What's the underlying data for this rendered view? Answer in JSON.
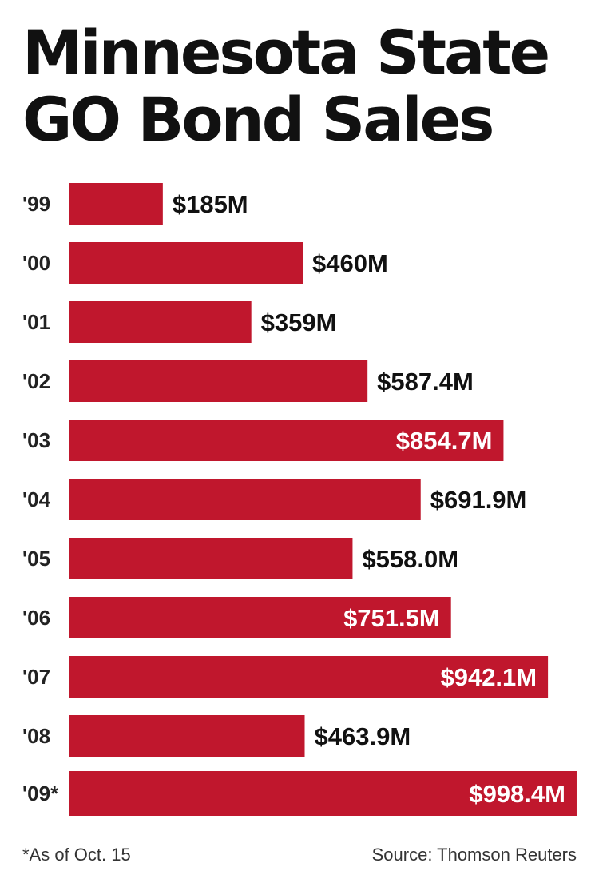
{
  "chart_data": {
    "type": "bar",
    "orientation": "horizontal",
    "title_lines": [
      "Minnesota State",
      "GO Bond Sales"
    ],
    "categories": [
      "'99",
      "'00",
      "'01",
      "'02",
      "'03",
      "'04",
      "'05",
      "'06",
      "'07",
      "'08",
      "'09*"
    ],
    "values": [
      185,
      460,
      359,
      587.4,
      854.7,
      691.9,
      558.0,
      751.5,
      942.1,
      463.9,
      998.4
    ],
    "value_labels": [
      "$185M",
      "$460M",
      "$359M",
      "$587.4M",
      "$854.7M",
      "$691.9M",
      "$558.0M",
      "$751.5M",
      "$942.1M",
      "$463.9M",
      "$998.4M"
    ],
    "unit": "$M",
    "xlim": [
      0,
      1000
    ],
    "bar_color": "#c0172d",
    "footnote": "*As of Oct. 15",
    "source": "Source: Thomson Reuters"
  }
}
